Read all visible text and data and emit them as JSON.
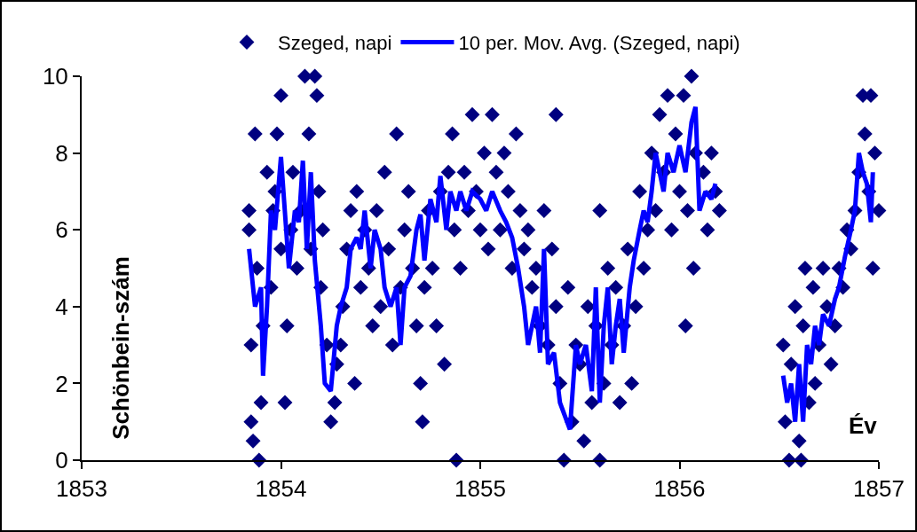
{
  "chart_data": {
    "type": "scatter",
    "xlabel": "Év",
    "ylabel": "Schönbein-szám",
    "xlim": [
      1853,
      1857
    ],
    "xticks": [
      1853,
      1854,
      1855,
      1856,
      1857
    ],
    "ylim": [
      0,
      10
    ],
    "yticks": [
      0,
      2,
      4,
      6,
      8,
      10
    ],
    "grid": false,
    "legend": "top",
    "marker": "diamond",
    "series": [
      {
        "name": "Szeged, napi",
        "color": "#000080",
        "x": [
          1853.84,
          1853.84,
          1853.85,
          1853.85,
          1853.86,
          1853.87,
          1853.88,
          1853.89,
          1853.9,
          1853.91,
          1853.93,
          1853.95,
          1853.96,
          1853.97,
          1853.98,
          1854.0,
          1854.0,
          1854.02,
          1854.03,
          1854.05,
          1854.06,
          1854.08,
          1854.1,
          1854.12,
          1854.14,
          1854.15,
          1854.17,
          1854.18,
          1854.19,
          1854.2,
          1854.21,
          1854.23,
          1854.25,
          1854.27,
          1854.28,
          1854.3,
          1854.31,
          1854.33,
          1854.35,
          1854.37,
          1854.38,
          1854.4,
          1854.42,
          1854.44,
          1854.46,
          1854.48,
          1854.5,
          1854.52,
          1854.54,
          1854.56,
          1854.58,
          1854.6,
          1854.62,
          1854.64,
          1854.66,
          1854.68,
          1854.7,
          1854.71,
          1854.72,
          1854.74,
          1854.76,
          1854.78,
          1854.8,
          1854.82,
          1854.84,
          1854.86,
          1854.87,
          1854.88,
          1854.9,
          1854.92,
          1854.94,
          1854.96,
          1854.98,
          1855.0,
          1855.02,
          1855.04,
          1855.06,
          1855.08,
          1855.1,
          1855.12,
          1855.14,
          1855.16,
          1855.18,
          1855.2,
          1855.22,
          1855.24,
          1855.26,
          1855.28,
          1855.3,
          1855.32,
          1855.34,
          1855.36,
          1855.38,
          1855.38,
          1855.4,
          1855.42,
          1855.44,
          1855.46,
          1855.48,
          1855.5,
          1855.52,
          1855.54,
          1855.56,
          1855.58,
          1855.6,
          1855.6,
          1855.62,
          1855.64,
          1855.66,
          1855.68,
          1855.7,
          1855.72,
          1855.74,
          1855.76,
          1855.78,
          1855.8,
          1855.82,
          1855.84,
          1855.86,
          1855.88,
          1855.9,
          1855.92,
          1855.94,
          1855.96,
          1855.98,
          1856.0,
          1856.02,
          1856.04,
          1856.06,
          1856.07,
          1856.08,
          1856.03,
          1856.12,
          1856.14,
          1856.16,
          1856.18,
          1856.2,
          1856.52,
          1856.53,
          1856.55,
          1856.56,
          1856.58,
          1856.6,
          1856.61,
          1856.62,
          1856.63,
          1856.65,
          1856.67,
          1856.68,
          1856.7,
          1856.72,
          1856.74,
          1856.76,
          1856.78,
          1856.8,
          1856.82,
          1856.84,
          1856.86,
          1856.88,
          1856.9,
          1856.92,
          1856.93,
          1856.95,
          1856.96,
          1856.97,
          1856.98,
          1857.0
        ],
        "values": [
          6.5,
          6,
          1,
          3,
          0.5,
          8.5,
          5,
          0,
          1.5,
          3.5,
          7.5,
          4.5,
          6.5,
          7,
          8.5,
          9.5,
          5.5,
          1.5,
          3.5,
          6,
          7.5,
          5,
          6.5,
          10,
          8.5,
          5.5,
          10,
          9.5,
          7,
          4.5,
          6,
          3,
          1,
          1.5,
          2.5,
          3,
          4,
          5.5,
          6.5,
          2,
          7,
          4.5,
          6,
          5,
          3.5,
          6.5,
          4,
          7.5,
          5.5,
          3,
          8.5,
          4.5,
          6,
          7,
          5,
          3.5,
          2,
          1,
          4.5,
          6.5,
          5,
          3.5,
          7,
          2.5,
          7.5,
          8.5,
          6,
          0,
          5,
          7.5,
          6.5,
          9,
          7,
          6,
          8,
          5.5,
          9,
          7.5,
          6,
          8,
          7,
          5,
          8.5,
          6.5,
          5.5,
          6,
          4.5,
          5,
          3.5,
          6.5,
          3,
          5.5,
          9,
          4,
          2,
          0,
          4.5,
          1,
          3,
          2.5,
          0.5,
          4,
          1.5,
          3.5,
          0,
          6.5,
          2,
          5,
          3,
          4.5,
          1.5,
          3.5,
          5.5,
          2,
          4,
          7,
          5,
          6,
          8,
          6.5,
          9,
          7.5,
          9.5,
          6,
          8.5,
          7,
          9.5,
          6.5,
          10,
          5,
          8,
          3.5,
          7.5,
          6,
          8,
          7,
          6.5,
          3,
          1,
          0,
          2.5,
          4,
          0.5,
          0,
          3.5,
          5,
          1.5,
          4.5,
          2,
          3,
          5,
          4,
          2.5,
          3.5,
          5,
          4.5,
          6,
          5.5,
          6.5,
          7.5,
          9.5,
          8.5,
          7,
          9.5,
          5,
          8,
          6.5
        ]
      },
      {
        "name": "10 per. Mov. Avg. (Szeged, napi)",
        "type": "line",
        "color": "#0000ff",
        "marker": "none",
        "line_style": "solid",
        "x": [
          1853.84,
          1853.87,
          1853.9,
          1853.91,
          1853.93,
          1853.95,
          1853.97,
          1854.0,
          1854.04,
          1854.07,
          1854.09,
          1854.11,
          1854.13,
          1854.15,
          1854.17,
          1854.2,
          1854.22,
          1854.25,
          1854.28,
          1854.3,
          1854.33,
          1854.35,
          1854.38,
          1854.4,
          1854.42,
          1854.45,
          1854.47,
          1854.5,
          1854.52,
          1854.55,
          1854.58,
          1854.6,
          1854.62,
          1854.65,
          1854.68,
          1854.7,
          1854.72,
          1854.75,
          1854.78,
          1854.8,
          1854.83,
          1854.85,
          1854.88,
          1854.9,
          1854.93,
          1854.96,
          1855.0,
          1855.03,
          1855.06,
          1855.1,
          1855.13,
          1855.16,
          1855.19,
          1855.22,
          1855.24,
          1855.26,
          1855.28,
          1855.3,
          1855.32,
          1855.34,
          1855.37,
          1855.4,
          1855.45,
          1855.48,
          1855.5,
          1855.53,
          1855.56,
          1855.58,
          1855.6,
          1855.62,
          1855.64,
          1855.66,
          1855.68,
          1855.7,
          1855.72,
          1855.75,
          1855.77,
          1855.8,
          1855.82,
          1855.84,
          1855.86,
          1855.88,
          1855.9,
          1855.92,
          1855.94,
          1855.97,
          1856.0,
          1856.03,
          1856.06,
          1856.08,
          1856.1,
          1856.13,
          1856.16,
          1856.18,
          1856.35,
          1856.52,
          1856.54,
          1856.56,
          1856.58,
          1856.6,
          1856.62,
          1856.64,
          1856.66,
          1856.68,
          1856.7,
          1856.72,
          1856.75,
          1856.78,
          1856.8,
          1856.83,
          1856.86,
          1856.88,
          1856.9,
          1856.92,
          1856.94,
          1856.96,
          1856.97
        ],
        "values": [
          5.5,
          4,
          4.5,
          2.2,
          4,
          6.5,
          6,
          7.9,
          5,
          6.5,
          6.2,
          7.8,
          5.5,
          7.5,
          5.2,
          3.5,
          2,
          1.8,
          3.5,
          4,
          4.5,
          5.5,
          5.8,
          5.5,
          6.5,
          5,
          6,
          5.5,
          4.5,
          4,
          4.5,
          3,
          4.5,
          4.8,
          6,
          6.4,
          5.2,
          6.8,
          6.2,
          7.4,
          6,
          7,
          6.5,
          7,
          6.5,
          7,
          6.8,
          6.5,
          7,
          6.5,
          6.2,
          5.8,
          5,
          4,
          3,
          3.5,
          4,
          2.8,
          5.5,
          2.5,
          2.8,
          1.5,
          0.8,
          3,
          2.5,
          3,
          1.8,
          4.5,
          1.5,
          3.5,
          4.5,
          2.5,
          3.5,
          4.2,
          2.8,
          4.5,
          5.2,
          6,
          6.5,
          6.2,
          7,
          8,
          7.5,
          7,
          8,
          7.5,
          8.2,
          7.5,
          8.8,
          9.2,
          6.5,
          7,
          6.8,
          7.2,
          null,
          2.2,
          1.5,
          2,
          1,
          2.5,
          1,
          3,
          2.5,
          3.5,
          3,
          3.8,
          3.5,
          4.2,
          4.5,
          5.3,
          6,
          6.5,
          8,
          7.5,
          7.2,
          6.2,
          7.5
        ]
      }
    ]
  }
}
